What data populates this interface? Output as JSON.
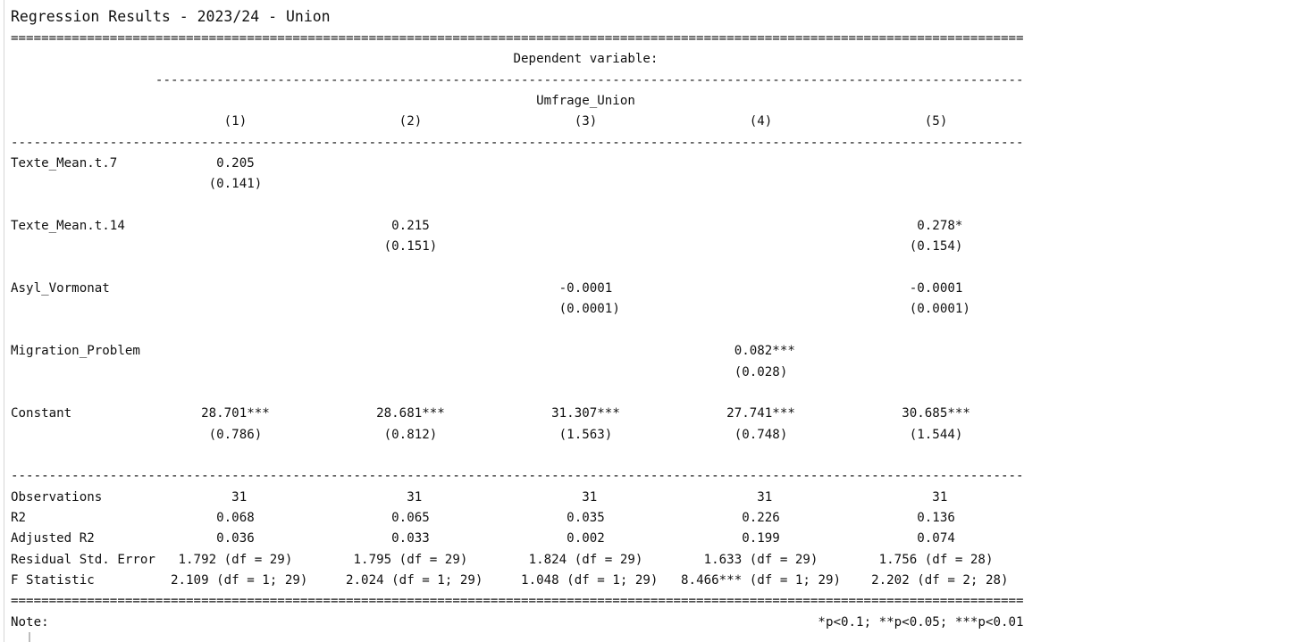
{
  "title": "Regression Results - 2023/24 - Union",
  "dependent_variable_label": "Dependent variable:",
  "dependent_variable": "Umfrage_Union",
  "columns": [
    "(1)",
    "(2)",
    "(3)",
    "(4)",
    "(5)"
  ],
  "coefficients": [
    {
      "name": "Texte_Mean.t.7",
      "estimates": [
        "0.205",
        "",
        "",
        "",
        ""
      ],
      "std_errors": [
        "(0.141)",
        "",
        "",
        "",
        ""
      ]
    },
    {
      "name": "Texte_Mean.t.14",
      "estimates": [
        "",
        "0.215",
        "",
        "",
        "0.278*"
      ],
      "std_errors": [
        "",
        "(0.151)",
        "",
        "",
        "(0.154)"
      ]
    },
    {
      "name": "Asyl_Vormonat",
      "estimates": [
        "",
        "",
        "-0.0001",
        "",
        "-0.0001"
      ],
      "std_errors": [
        "",
        "",
        "(0.0001)",
        "",
        "(0.0001)"
      ]
    },
    {
      "name": "Migration_Problem",
      "estimates": [
        "",
        "",
        "",
        "0.082***",
        ""
      ],
      "std_errors": [
        "",
        "",
        "",
        "(0.028)",
        ""
      ]
    },
    {
      "name": "Constant",
      "estimates": [
        "28.701***",
        "28.681***",
        "31.307***",
        "27.741***",
        "30.685***"
      ],
      "std_errors": [
        "(0.786)",
        "(0.812)",
        "(1.563)",
        "(0.748)",
        "(1.544)"
      ]
    }
  ],
  "statistics": [
    {
      "name": "Observations",
      "values": [
        "31",
        "31",
        "31",
        "31",
        "31"
      ]
    },
    {
      "name": "R2",
      "values": [
        "0.068",
        "0.065",
        "0.035",
        "0.226",
        "0.136"
      ]
    },
    {
      "name": "Adjusted R2",
      "values": [
        "0.036",
        "0.033",
        "0.002",
        "0.199",
        "0.074"
      ]
    },
    {
      "name": "Residual Std. Error",
      "values": [
        "1.792 (df = 29)",
        "1.795 (df = 29)",
        "1.824 (df = 29)",
        "1.633 (df = 29)",
        "1.756 (df = 28)"
      ]
    },
    {
      "name": "F Statistic",
      "values": [
        "2.109 (df = 1; 29)",
        "2.024 (df = 1; 29)",
        "1.048 (df = 1; 29)",
        "8.466*** (df = 1; 29)",
        "2.202 (df = 2; 28)"
      ]
    }
  ],
  "note_label": "Note:",
  "note_text": "*p<0.1; **p<0.05; ***p<0.01"
}
